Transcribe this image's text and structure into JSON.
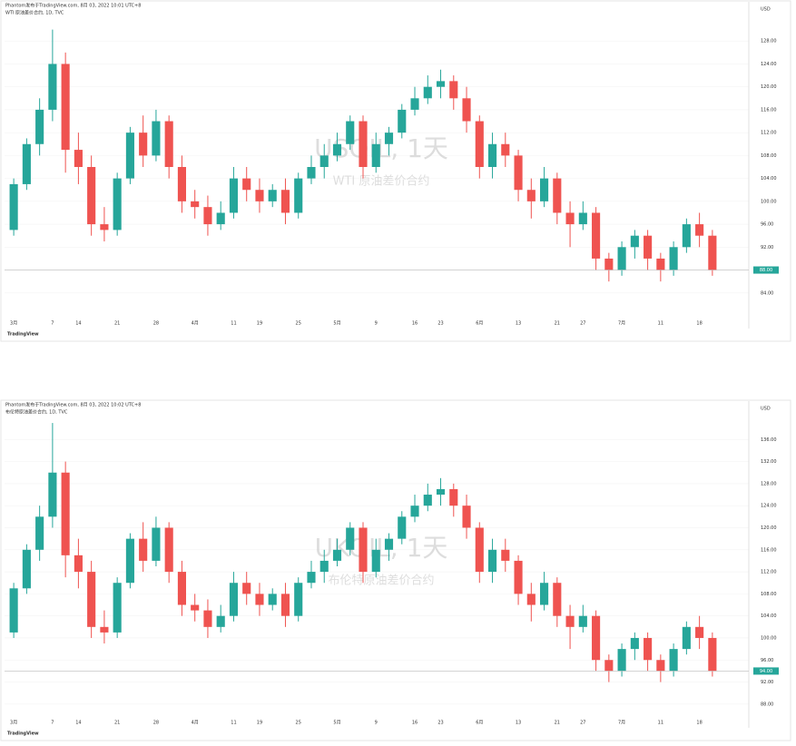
{
  "chart_data": [
    {
      "type": "candlestick",
      "header": "Phantom发布于TradingView.com, 8月 03, 2022 10:01 UTC+8",
      "title": "WTI 原油差价合约, 1D, TVC",
      "watermark": "USOIL, 1天",
      "subtitle": "WTI 原油差价合约",
      "currency": "USD",
      "footer": "TradingView",
      "up_color": "#26a69a",
      "down_color": "#ef5350",
      "categories": [
        "3月",
        null,
        null,
        "7",
        null,
        "14",
        null,
        null,
        "21",
        null,
        null,
        "28",
        null,
        null,
        "4月",
        null,
        null,
        "11",
        null,
        "19",
        null,
        null,
        "25",
        null,
        null,
        "5月",
        null,
        null,
        "9",
        null,
        null,
        "16",
        null,
        "23",
        null,
        null,
        "6月",
        null,
        null,
        "13",
        null,
        null,
        "21",
        null,
        "27",
        null,
        null,
        "7月",
        null,
        null,
        "11",
        null,
        null,
        "18",
        null
      ],
      "open": [
        95,
        103,
        110,
        116,
        124,
        109,
        106,
        96,
        95,
        104,
        112,
        108,
        114,
        106,
        100,
        99,
        96,
        98,
        104,
        102,
        100,
        102,
        98,
        104,
        106,
        108,
        110,
        114,
        106,
        110,
        112,
        116,
        118,
        120,
        121,
        118,
        114,
        106,
        110,
        108,
        102,
        100,
        104,
        98,
        96,
        98,
        90,
        88,
        92,
        94,
        90,
        88,
        92,
        96,
        94
      ],
      "high": [
        104,
        111,
        118,
        130,
        126,
        112,
        108,
        99,
        105,
        113,
        115,
        116,
        115,
        108,
        102,
        101,
        100,
        106,
        106,
        104,
        103,
        104,
        105,
        108,
        110,
        112,
        115,
        115,
        112,
        113,
        117,
        120,
        122,
        123,
        122,
        120,
        115,
        112,
        112,
        109,
        104,
        106,
        105,
        100,
        100,
        99,
        91,
        93,
        95,
        95,
        91,
        93,
        97,
        98,
        95
      ],
      "low": [
        94,
        102,
        108,
        114,
        105,
        103,
        94,
        93,
        94,
        103,
        106,
        107,
        104,
        98,
        97,
        94,
        95,
        97,
        100,
        98,
        99,
        96,
        97,
        103,
        104,
        107,
        109,
        104,
        105,
        108,
        111,
        115,
        117,
        118,
        116,
        112,
        104,
        104,
        106,
        100,
        97,
        99,
        96,
        92,
        95,
        88,
        86,
        87,
        90,
        88,
        86,
        87,
        91,
        92,
        87
      ],
      "close": [
        103,
        110,
        116,
        124,
        109,
        106,
        96,
        95,
        104,
        112,
        108,
        114,
        106,
        100,
        99,
        96,
        98,
        104,
        102,
        100,
        102,
        98,
        104,
        106,
        108,
        110,
        114,
        106,
        110,
        112,
        116,
        118,
        120,
        121,
        118,
        114,
        106,
        110,
        108,
        102,
        100,
        104,
        98,
        96,
        98,
        90,
        88,
        92,
        94,
        90,
        88,
        92,
        96,
        94,
        88
      ],
      "last_price": {
        "value": 88,
        "label": "88.00"
      },
      "ylim": [
        80,
        132
      ],
      "yticks": [
        {
          "value": 84,
          "label": "84.00"
        },
        {
          "value": 88,
          "label": "88.00"
        },
        {
          "value": 92,
          "label": "92.00"
        },
        {
          "value": 96,
          "label": "96.00"
        },
        {
          "value": 100,
          "label": "100.00"
        },
        {
          "value": 104,
          "label": "104.00"
        },
        {
          "value": 108,
          "label": "108.00"
        },
        {
          "value": 112,
          "label": "112.00"
        },
        {
          "value": 116,
          "label": "116.00"
        },
        {
          "value": 120,
          "label": "120.00"
        },
        {
          "value": 124,
          "label": "124.00"
        },
        {
          "value": 128,
          "label": "128.00"
        }
      ],
      "grid": true
    },
    {
      "type": "candlestick",
      "header": "Phantom发布于TradingView.com, 8月 03, 2022 10:02 UTC+8",
      "title": "布伦特原油差价合约, 1D, TVC",
      "watermark": "UKOIL, 1天",
      "subtitle": "布伦特原油差价合约",
      "currency": "USD",
      "footer": "TradingView",
      "up_color": "#26a69a",
      "down_color": "#ef5350",
      "categories": [
        "3月",
        null,
        null,
        "7",
        null,
        "14",
        null,
        null,
        "21",
        null,
        null,
        "28",
        null,
        null,
        "4月",
        null,
        null,
        "11",
        null,
        "19",
        null,
        null,
        "25",
        null,
        null,
        "5月",
        null,
        null,
        "9",
        null,
        null,
        "16",
        null,
        "23",
        null,
        null,
        "6月",
        null,
        null,
        "13",
        null,
        null,
        "21",
        null,
        "27",
        null,
        null,
        "7月",
        null,
        null,
        "11",
        null,
        null,
        "18",
        null
      ],
      "open": [
        101,
        109,
        116,
        122,
        130,
        115,
        112,
        102,
        101,
        110,
        118,
        114,
        120,
        112,
        106,
        105,
        102,
        104,
        110,
        108,
        106,
        108,
        104,
        110,
        112,
        114,
        116,
        120,
        112,
        116,
        118,
        122,
        124,
        126,
        127,
        124,
        120,
        112,
        116,
        114,
        108,
        106,
        110,
        104,
        102,
        104,
        96,
        94,
        98,
        100,
        96,
        94,
        98,
        102,
        100
      ],
      "high": [
        110,
        117,
        124,
        139,
        132,
        118,
        114,
        105,
        111,
        119,
        121,
        122,
        121,
        114,
        108,
        107,
        106,
        112,
        112,
        110,
        109,
        110,
        111,
        114,
        116,
        118,
        121,
        121,
        118,
        119,
        123,
        126,
        128,
        129,
        128,
        126,
        121,
        118,
        118,
        115,
        110,
        112,
        111,
        106,
        106,
        105,
        97,
        99,
        101,
        101,
        97,
        99,
        103,
        104,
        101
      ],
      "low": [
        100,
        108,
        114,
        120,
        111,
        109,
        100,
        99,
        100,
        109,
        112,
        113,
        110,
        104,
        103,
        100,
        101,
        103,
        106,
        104,
        105,
        102,
        103,
        109,
        110,
        113,
        115,
        110,
        111,
        114,
        117,
        121,
        123,
        124,
        122,
        118,
        110,
        110,
        112,
        106,
        103,
        105,
        102,
        98,
        101,
        94,
        92,
        93,
        96,
        94,
        92,
        93,
        97,
        98,
        93
      ],
      "close": [
        109,
        116,
        122,
        130,
        115,
        112,
        102,
        101,
        110,
        118,
        114,
        120,
        112,
        106,
        105,
        102,
        104,
        110,
        108,
        106,
        108,
        104,
        110,
        112,
        114,
        116,
        120,
        112,
        116,
        118,
        122,
        124,
        126,
        127,
        124,
        120,
        112,
        116,
        114,
        108,
        106,
        110,
        104,
        102,
        104,
        96,
        94,
        98,
        100,
        96,
        94,
        98,
        102,
        100,
        94
      ],
      "last_price": {
        "value": 94,
        "label": "94.00"
      },
      "ylim": [
        86,
        140
      ],
      "yticks": [
        {
          "value": 88,
          "label": "88.00"
        },
        {
          "value": 92,
          "label": "92.00"
        },
        {
          "value": 96,
          "label": "96.00"
        },
        {
          "value": 100,
          "label": "100.00"
        },
        {
          "value": 104,
          "label": "104.00"
        },
        {
          "value": 108,
          "label": "108.00"
        },
        {
          "value": 112,
          "label": "112.00"
        },
        {
          "value": 116,
          "label": "116.00"
        },
        {
          "value": 120,
          "label": "120.00"
        },
        {
          "value": 124,
          "label": "124.00"
        },
        {
          "value": 128,
          "label": "128.00"
        },
        {
          "value": 132,
          "label": "132.00"
        },
        {
          "value": 136,
          "label": "136.00"
        }
      ],
      "grid": true
    }
  ]
}
